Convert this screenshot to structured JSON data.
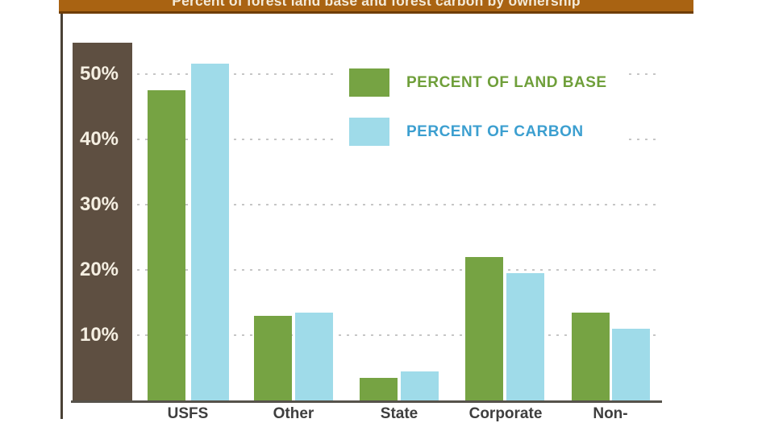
{
  "title": {
    "text": "Percent of forest land base and forest carbon by ownership"
  },
  "legend": {
    "items": [
      {
        "label": "PERCENT OF LAND BASE",
        "swatch_color": "#76a343",
        "text_color": "#6f9f3a"
      },
      {
        "label": "PERCENT OF CARBON",
        "swatch_color": "#9fdbe9",
        "text_color": "#3c9fd0"
      }
    ]
  },
  "y_axis": {
    "ticks": [
      {
        "value": 50,
        "label": "50%"
      },
      {
        "value": 40,
        "label": "40%"
      },
      {
        "value": 30,
        "label": "30%"
      },
      {
        "value": 20,
        "label": "20%"
      },
      {
        "value": 10,
        "label": "10%"
      }
    ]
  },
  "chart_data": {
    "type": "bar",
    "title": "Percent of forest land base and forest carbon by ownership",
    "categories": [
      "USFS",
      "Other",
      "State",
      "Corporate",
      "Non-"
    ],
    "series": [
      {
        "name": "PERCENT OF LAND BASE",
        "color": "#76a343",
        "values": [
          47.5,
          13,
          3.5,
          22,
          13.5
        ]
      },
      {
        "name": "PERCENT OF CARBON",
        "color": "#9fdbe9",
        "values": [
          51.5,
          13.5,
          4.5,
          19.5,
          11
        ]
      }
    ],
    "xlabel": "",
    "ylabel": "",
    "ylim": [
      0,
      55
    ],
    "grid": "horizontal-dashed",
    "legend_position": "upper-right-inside"
  },
  "colors": {
    "title_bar_bg": "#a96312",
    "title_bar_border": "#6f3d05",
    "title_text": "#f3ead9",
    "y_stripe_bg": "#5e4f41",
    "y_tick_text": "#f5efe2",
    "gridline": "#c6c6c6",
    "axis_line": "#56524b",
    "x_label_text": "#3e3e3e",
    "left_line": "#4a4136"
  }
}
